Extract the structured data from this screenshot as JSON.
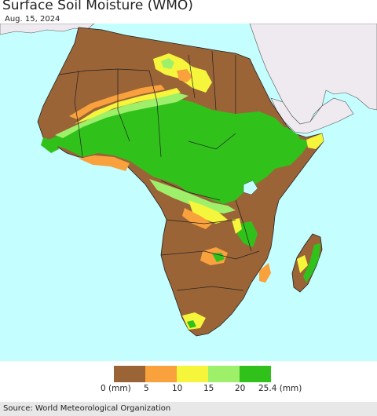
{
  "title": "Surface Soil Moisture (WMO)",
  "date": "Aug. 15, 2024",
  "legend": {
    "colors": [
      "#9a6437",
      "#f9a13c",
      "#f5f53c",
      "#9ef06b",
      "#30c21b"
    ],
    "labels": [
      "0 (mm)",
      "5",
      "10",
      "15",
      "20",
      "25.4 (mm)"
    ]
  },
  "source": "Source: World Meteorological Organization",
  "colors": {
    "ocean": "#c5fefe",
    "land_outside": "#eeeaef",
    "border": "#333333"
  }
}
